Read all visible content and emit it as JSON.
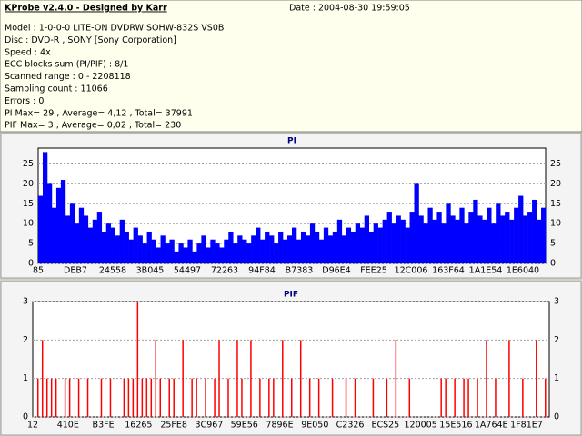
{
  "header": {
    "title": "KProbe v2.4.0 - Designed by Karr",
    "date": "Date : 2004-08-30 19:59:05",
    "lines": [
      "Model : 1-0-0-0 LITE-ON DVDRW SOHW-832S  VS0B",
      "Disc : DVD-R , SONY [Sony Corporation]",
      "Speed : 4x",
      "ECC blocks sum (PI/PIF) : 8/1",
      "Scanned range : 0 - 2208118",
      "Sampling count : 11066",
      "Errors : 0",
      "PI Max= 29 , Average= 4,12 , Total= 37991",
      "PIF Max= 3 , Average= 0,02 , Total= 230"
    ]
  },
  "chart_data": [
    {
      "type": "bar",
      "title": "PI",
      "color": "#0000ff",
      "ylim": [
        0,
        29
      ],
      "yticks": [
        0,
        5,
        10,
        15,
        20,
        25
      ],
      "grid": true,
      "x_labels": [
        "85",
        "DEB7",
        "24558",
        "3B045",
        "54497",
        "72263",
        "94F84",
        "B7383",
        "D96E4",
        "FEE25",
        "12C006",
        "163F64",
        "1A1E54",
        "1E6040"
      ],
      "values": [
        17,
        28,
        20,
        14,
        19,
        21,
        12,
        15,
        10,
        14,
        12,
        9,
        11,
        13,
        8,
        10,
        9,
        7,
        11,
        8,
        6,
        9,
        7,
        5,
        8,
        6,
        4,
        7,
        5,
        6,
        3,
        5,
        4,
        6,
        3,
        5,
        7,
        4,
        6,
        5,
        4,
        6,
        8,
        5,
        7,
        6,
        5,
        7,
        9,
        6,
        8,
        7,
        5,
        8,
        6,
        7,
        9,
        6,
        8,
        7,
        10,
        8,
        6,
        9,
        7,
        8,
        11,
        7,
        9,
        8,
        10,
        9,
        12,
        8,
        10,
        9,
        11,
        13,
        10,
        12,
        11,
        9,
        13,
        20,
        12,
        10,
        14,
        11,
        13,
        10,
        15,
        12,
        11,
        14,
        10,
        13,
        16,
        12,
        11,
        14,
        10,
        15,
        12,
        13,
        11,
        14,
        17,
        12,
        13,
        16,
        11,
        14
      ]
    },
    {
      "type": "bar",
      "title": "PIF",
      "color": "#ff0000",
      "ylim": [
        0,
        3
      ],
      "yticks": [
        0,
        1,
        2,
        3
      ],
      "grid": true,
      "x_labels": [
        "12",
        "410E",
        "B3FE",
        "16265",
        "25FE8",
        "3C967",
        "59E56",
        "7896E",
        "9E050",
        "C2326",
        "ECS25",
        "120005",
        "15E516",
        "1A764E",
        "1F81E7"
      ],
      "values": [
        0,
        1,
        2,
        1,
        1,
        1,
        0,
        1,
        1,
        0,
        1,
        0,
        1,
        0,
        0,
        1,
        0,
        1,
        0,
        0,
        1,
        1,
        1,
        3,
        1,
        1,
        1,
        2,
        1,
        0,
        1,
        1,
        0,
        2,
        0,
        1,
        1,
        0,
        1,
        0,
        1,
        2,
        0,
        1,
        0,
        2,
        1,
        0,
        2,
        0,
        1,
        0,
        1,
        1,
        0,
        2,
        0,
        1,
        0,
        2,
        0,
        1,
        0,
        1,
        0,
        0,
        1,
        0,
        0,
        1,
        0,
        1,
        0,
        0,
        0,
        1,
        0,
        0,
        1,
        0,
        2,
        0,
        0,
        1,
        0,
        0,
        0,
        0,
        0,
        0,
        1,
        1,
        0,
        1,
        0,
        1,
        1,
        0,
        1,
        0,
        2,
        0,
        1,
        0,
        0,
        2,
        0,
        0,
        1,
        0,
        0,
        2,
        0,
        1
      ]
    }
  ]
}
